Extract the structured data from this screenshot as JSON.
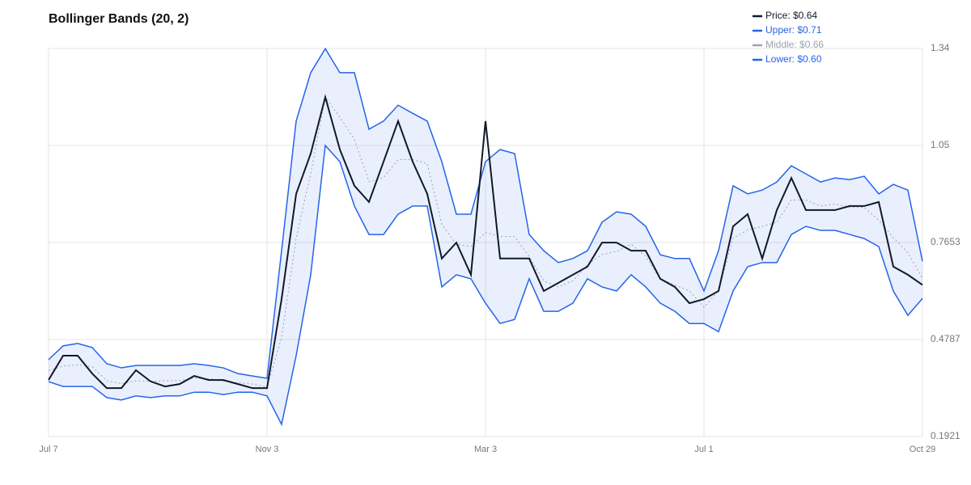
{
  "chart_data": {
    "type": "line",
    "title": "Bollinger Bands (20, 2)",
    "categories": [
      "Jul 7",
      null,
      null,
      null,
      null,
      null,
      null,
      null,
      null,
      null,
      null,
      null,
      null,
      null,
      null,
      "Nov 3",
      null,
      null,
      null,
      null,
      null,
      null,
      null,
      null,
      null,
      null,
      null,
      null,
      null,
      null,
      "Mar 3",
      null,
      null,
      null,
      null,
      null,
      null,
      null,
      null,
      null,
      null,
      null,
      null,
      null,
      null,
      "Jul 1",
      null,
      null,
      null,
      null,
      null,
      null,
      null,
      null,
      null,
      null,
      null,
      null,
      null,
      null,
      "Oct 29"
    ],
    "series": [
      {
        "name": "Price: $0.64",
        "color": "#111827",
        "values": [
          0.359,
          0.431,
          0.431,
          0.378,
          0.335,
          0.335,
          0.388,
          0.355,
          0.34,
          0.347,
          0.371,
          0.359,
          0.359,
          0.347,
          0.335,
          0.335,
          0.598,
          0.909,
          1.028,
          1.195,
          1.04,
          0.933,
          0.885,
          1.004,
          1.124,
          1.004,
          0.909,
          0.718,
          0.765,
          0.67,
          1.124,
          0.718,
          0.718,
          0.718,
          0.622,
          0.646,
          0.67,
          0.694,
          0.765,
          0.765,
          0.741,
          0.741,
          0.658,
          0.634,
          0.586,
          0.598,
          0.622,
          0.813,
          0.849,
          0.718,
          0.861,
          0.956,
          0.861,
          0.861,
          0.861,
          0.873,
          0.873,
          0.885,
          0.694,
          0.67,
          0.64
        ]
      },
      {
        "name": "Upper: $0.71",
        "color": "#2563eb",
        "values": [
          0.419,
          0.46,
          0.467,
          0.455,
          0.407,
          0.395,
          0.402,
          0.402,
          0.402,
          0.402,
          0.407,
          0.402,
          0.395,
          0.378,
          0.371,
          0.364,
          0.741,
          1.124,
          1.267,
          1.338,
          1.267,
          1.267,
          1.1,
          1.124,
          1.171,
          1.147,
          1.124,
          1.004,
          0.849,
          0.849,
          1.004,
          1.04,
          1.028,
          0.789,
          0.741,
          0.706,
          0.718,
          0.741,
          0.825,
          0.856,
          0.849,
          0.813,
          0.729,
          0.718,
          0.718,
          0.622,
          0.741,
          0.933,
          0.909,
          0.92,
          0.944,
          0.992,
          0.968,
          0.944,
          0.956,
          0.951,
          0.961,
          0.909,
          0.937,
          0.92,
          0.71
        ]
      },
      {
        "name": "Middle: $0.66",
        "color": "#9ca3af",
        "values": [
          0.387,
          0.4,
          0.404,
          0.398,
          0.357,
          0.348,
          0.357,
          0.355,
          0.357,
          0.357,
          0.365,
          0.363,
          0.356,
          0.351,
          0.347,
          0.338,
          0.485,
          0.778,
          0.969,
          1.195,
          1.136,
          1.07,
          0.945,
          0.957,
          1.01,
          1.01,
          0.999,
          0.819,
          0.76,
          0.754,
          0.795,
          0.783,
          0.783,
          0.724,
          0.652,
          0.634,
          0.652,
          0.7,
          0.73,
          0.739,
          0.76,
          0.724,
          0.658,
          0.64,
          0.622,
          0.574,
          0.622,
          0.778,
          0.802,
          0.813,
          0.825,
          0.891,
          0.891,
          0.873,
          0.879,
          0.87,
          0.869,
          0.831,
          0.78,
          0.735,
          0.66
        ]
      },
      {
        "name": "Lower: $0.60",
        "color": "#2563eb",
        "values": [
          0.354,
          0.34,
          0.34,
          0.34,
          0.307,
          0.3,
          0.312,
          0.307,
          0.312,
          0.312,
          0.323,
          0.323,
          0.316,
          0.323,
          0.323,
          0.312,
          0.228,
          0.431,
          0.67,
          1.052,
          1.004,
          0.873,
          0.789,
          0.789,
          0.849,
          0.873,
          0.873,
          0.634,
          0.67,
          0.658,
          0.586,
          0.526,
          0.538,
          0.658,
          0.562,
          0.562,
          0.586,
          0.658,
          0.634,
          0.622,
          0.67,
          0.634,
          0.586,
          0.562,
          0.526,
          0.526,
          0.502,
          0.622,
          0.694,
          0.706,
          0.706,
          0.789,
          0.813,
          0.801,
          0.801,
          0.789,
          0.777,
          0.753,
          0.622,
          0.55,
          0.6
        ]
      }
    ],
    "ylim": [
      0.1921,
      1.3385
    ],
    "yticks": [
      0.1921,
      0.4787,
      0.7653,
      {
        "value": 1.0519,
        "label": "1.05"
      },
      {
        "value": 1.3385,
        "label": "1.34"
      }
    ],
    "grid": true
  }
}
